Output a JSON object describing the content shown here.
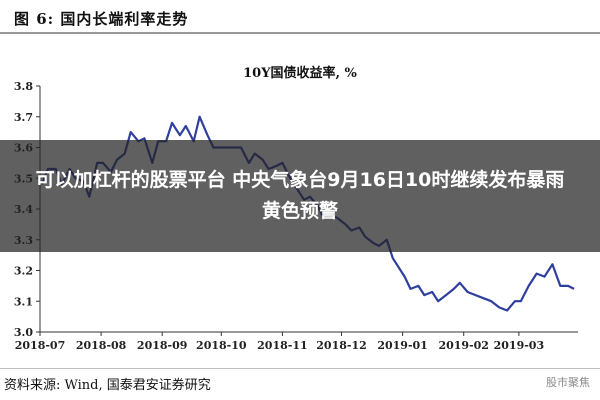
{
  "figure_title": "图 6:  国内长端利率走势",
  "source_text": "资料来源:  Wind,  国泰君安证券研究",
  "watermark_text": "股市聚焦",
  "banner_text": "可以加杠杆的股票平台 中央气象台9月16日10时继续发布暴雨黄色预警",
  "colors": {
    "line": "#2f3f9e",
    "banner_bg": "#2b2b2b",
    "banner_text": "#ffffff"
  },
  "chart_data": {
    "type": "line",
    "title": "10Y国债收益率, %",
    "xlabel": "",
    "ylabel": "",
    "grid": false,
    "legend": "none",
    "xlim": [
      "2018-07-01",
      "2019-03-31"
    ],
    "ylim": [
      3.0,
      3.8
    ],
    "yticks": [
      3.0,
      3.1,
      3.2,
      3.3,
      3.4,
      3.5,
      3.6,
      3.7,
      3.8
    ],
    "xtick_labels": [
      "2018-07",
      "2018-08",
      "2018-09",
      "2018-10",
      "2018-11",
      "2018-12",
      "2019-01",
      "2019-02",
      "2019-03"
    ],
    "xticks": [
      "2018-07-01",
      "2018-08-01",
      "2018-09-01",
      "2018-10-01",
      "2018-11-01",
      "2018-12-01",
      "2019-01-01",
      "2019-02-01",
      "2019-03-01"
    ],
    "series": [
      {
        "x": [
          "2018-07-02",
          "2018-07-05",
          "2018-07-09",
          "2018-07-12",
          "2018-07-16",
          "2018-07-19",
          "2018-07-23",
          "2018-07-26",
          "2018-07-30",
          "2018-08-02",
          "2018-08-06",
          "2018-08-09",
          "2018-08-13",
          "2018-08-16",
          "2018-08-20",
          "2018-08-23",
          "2018-08-27",
          "2018-08-30",
          "2018-09-03",
          "2018-09-06",
          "2018-09-10",
          "2018-09-13",
          "2018-09-17",
          "2018-09-20",
          "2018-09-24",
          "2018-09-27",
          "2018-10-01",
          "2018-10-08",
          "2018-10-11",
          "2018-10-15",
          "2018-10-18",
          "2018-10-22",
          "2018-10-25",
          "2018-10-29",
          "2018-11-01",
          "2018-11-05",
          "2018-11-08",
          "2018-11-12",
          "2018-11-15",
          "2018-11-19",
          "2018-11-22",
          "2018-11-26",
          "2018-11-29",
          "2018-12-03",
          "2018-12-06",
          "2018-12-10",
          "2018-12-13",
          "2018-12-17",
          "2018-12-20",
          "2018-12-24",
          "2018-12-27",
          "2019-01-02",
          "2019-01-05",
          "2019-01-09",
          "2019-01-12",
          "2019-01-16",
          "2019-01-19",
          "2019-01-23",
          "2019-01-27",
          "2019-01-30",
          "2019-02-03",
          "2019-02-07",
          "2019-02-11",
          "2019-02-15",
          "2019-02-19",
          "2019-02-23",
          "2019-02-27",
          "2019-03-02",
          "2019-03-06",
          "2019-03-10",
          "2019-03-14",
          "2019-03-18",
          "2019-03-22",
          "2019-03-26",
          "2019-03-29"
        ],
        "values": [
          3.48,
          3.53,
          3.53,
          3.48,
          3.53,
          3.5,
          3.49,
          3.44,
          3.55,
          3.55,
          3.52,
          3.56,
          3.58,
          3.65,
          3.62,
          3.63,
          3.55,
          3.62,
          3.62,
          3.68,
          3.64,
          3.67,
          3.62,
          3.7,
          3.64,
          3.6,
          3.6,
          3.6,
          3.6,
          3.55,
          3.58,
          3.56,
          3.53,
          3.54,
          3.55,
          3.5,
          3.47,
          3.43,
          3.44,
          3.41,
          3.37,
          3.38,
          3.37,
          3.35,
          3.33,
          3.34,
          3.31,
          3.29,
          3.28,
          3.3,
          3.24,
          3.18,
          3.14,
          3.15,
          3.12,
          3.13,
          3.1,
          3.12,
          3.14,
          3.16,
          3.13,
          3.12,
          3.11,
          3.1,
          3.08,
          3.07,
          3.1,
          3.1,
          3.15,
          3.19,
          3.18,
          3.22,
          3.15,
          3.15,
          3.14
        ]
      }
    ]
  }
}
